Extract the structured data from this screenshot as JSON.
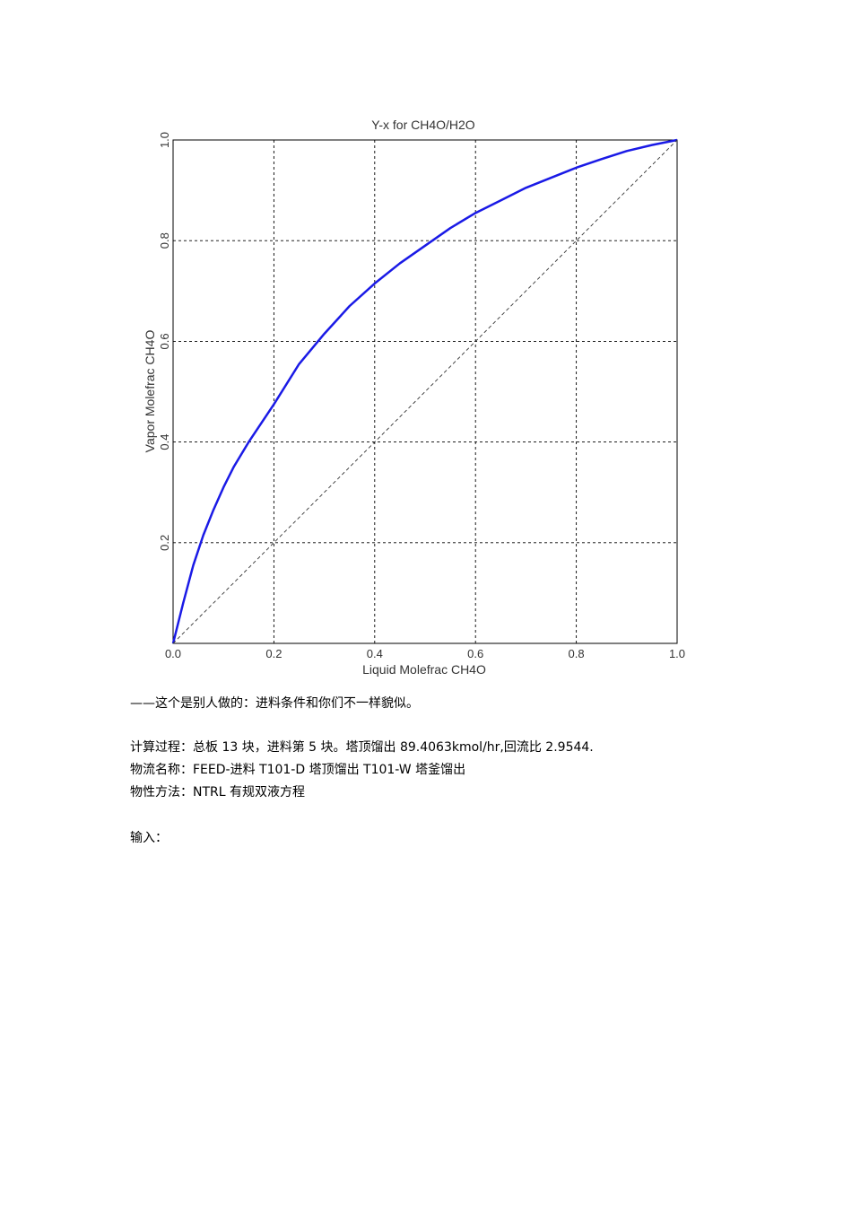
{
  "chart_data": {
    "type": "line",
    "title": "Y-x for CH4O/H2O",
    "xlabel": "Liquid Molefrac CH4O",
    "ylabel": "Vapor Molefrac CH4O",
    "xlim": [
      0,
      1
    ],
    "ylim": [
      0,
      1
    ],
    "xticks": [
      "0.0",
      "0.2",
      "0.4",
      "0.6",
      "0.8",
      "1.0"
    ],
    "yticks": [
      "0.2",
      "0.4",
      "0.6",
      "0.8",
      "1.0"
    ],
    "grid": true,
    "series": [
      {
        "color": "#1a1ae6",
        "style": "solid",
        "x": [
          0,
          0.02,
          0.04,
          0.06,
          0.08,
          0.1,
          0.12,
          0.15,
          0.2,
          0.25,
          0.3,
          0.35,
          0.4,
          0.45,
          0.5,
          0.55,
          0.6,
          0.65,
          0.7,
          0.75,
          0.8,
          0.85,
          0.9,
          0.95,
          1.0
        ],
        "y": [
          0,
          0.08,
          0.155,
          0.215,
          0.265,
          0.31,
          0.35,
          0.4,
          0.475,
          0.555,
          0.615,
          0.67,
          0.715,
          0.755,
          0.79,
          0.825,
          0.855,
          0.88,
          0.905,
          0.925,
          0.945,
          0.962,
          0.978,
          0.99,
          1.0
        ]
      },
      {
        "color": "#333333",
        "style": "dashed",
        "x": [
          0,
          1
        ],
        "y": [
          0,
          1
        ]
      }
    ]
  },
  "text": {
    "p1": "——这个是别人做的：进料条件和你们不一样貌似。",
    "p2": "计算过程：总板 13 块，进料第 5 块。塔顶馏出 89.4063kmol/hr,回流比 2.9544.",
    "p3": "物流名称：FEED-进料  T101-D 塔顶馏出  T101-W 塔釜馏出",
    "p4": "物性方法：NTRL 有规双液方程",
    "p5": "输入："
  }
}
